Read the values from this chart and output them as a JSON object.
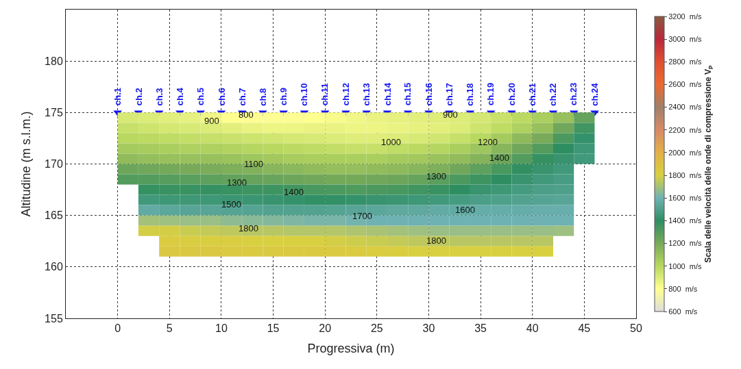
{
  "chart_data": {
    "type": "heatmap",
    "xlabel": "Progressiva (m)",
    "ylabel": "Altitudine (m s.l.m.)",
    "clabel": "Scala delle velocità delle onde di compressione V$_{P}$",
    "xlim": [
      -5,
      50
    ],
    "ylim": [
      155,
      185
    ],
    "xticks": [
      0,
      5,
      10,
      15,
      20,
      25,
      30,
      35,
      40,
      45,
      50
    ],
    "yticks": [
      155,
      160,
      165,
      170,
      175,
      180
    ],
    "grid": true,
    "x": [
      1,
      3,
      5,
      7,
      9,
      11,
      13,
      15,
      17,
      19,
      21,
      23,
      25,
      27,
      29,
      31,
      33,
      35,
      37,
      39,
      41,
      43,
      45
    ],
    "y": [
      174.5,
      173.5,
      172.5,
      171.5,
      170.5,
      169.5,
      168.5,
      167.5,
      166.5,
      165.5,
      164.5,
      163.5,
      162.5,
      161.5
    ],
    "cells": [
      [
        910,
        900,
        880,
        870,
        840,
        800,
        790,
        790,
        790,
        800,
        820,
        840,
        860,
        870,
        880,
        890,
        900,
        920,
        950,
        990,
        1040,
        1100,
        1250
      ],
      [
        960,
        940,
        920,
        910,
        900,
        880,
        860,
        850,
        850,
        860,
        860,
        850,
        850,
        860,
        870,
        880,
        900,
        940,
        980,
        1030,
        1100,
        1220,
        1350
      ],
      [
        1000,
        990,
        980,
        970,
        960,
        950,
        940,
        930,
        920,
        910,
        900,
        890,
        890,
        900,
        910,
        930,
        960,
        1000,
        1060,
        1130,
        1200,
        1320,
        1420
      ],
      [
        1060,
        1050,
        1040,
        1030,
        1030,
        1020,
        1010,
        1000,
        990,
        980,
        970,
        960,
        960,
        980,
        990,
        1010,
        1040,
        1080,
        1150,
        1220,
        1300,
        1400,
        1450
      ],
      [
        1120,
        1110,
        1100,
        1100,
        1100,
        1090,
        1080,
        1070,
        1050,
        1040,
        1040,
        1040,
        1040,
        1060,
        1070,
        1090,
        1120,
        1160,
        1230,
        1300,
        1380,
        1430,
        1460
      ],
      [
        1230,
        1220,
        1210,
        1200,
        1190,
        1180,
        1170,
        1150,
        1140,
        1120,
        1110,
        1110,
        1120,
        1130,
        1150,
        1180,
        1220,
        1270,
        1330,
        1390,
        1430,
        1460,
        null
      ],
      [
        1300,
        1300,
        1290,
        1280,
        1270,
        1260,
        1250,
        1240,
        1230,
        1220,
        1210,
        1210,
        1220,
        1230,
        1250,
        1280,
        1320,
        1360,
        1400,
        1430,
        1460,
        1480,
        null
      ],
      [
        null,
        1380,
        1370,
        1370,
        1380,
        1370,
        1360,
        1360,
        1350,
        1330,
        1320,
        1310,
        1320,
        1330,
        1350,
        1370,
        1400,
        1430,
        1450,
        1470,
        1490,
        1500,
        null
      ],
      [
        null,
        1460,
        1450,
        1450,
        1450,
        1440,
        1440,
        1430,
        1420,
        1410,
        1410,
        1420,
        1430,
        1440,
        1450,
        1460,
        1470,
        1490,
        1500,
        1510,
        1520,
        1530,
        null
      ],
      [
        null,
        1560,
        1540,
        1530,
        1530,
        1520,
        1520,
        1510,
        1510,
        1510,
        1520,
        1530,
        1540,
        1550,
        1550,
        1560,
        1560,
        1570,
        1570,
        1570,
        1580,
        1580,
        null
      ],
      [
        null,
        1700,
        1690,
        1680,
        1680,
        1660,
        1650,
        1640,
        1630,
        1620,
        1620,
        1610,
        1600,
        1600,
        1600,
        1600,
        1600,
        1600,
        1600,
        1600,
        1600,
        1600,
        null
      ],
      [
        null,
        1790,
        1790,
        1770,
        1760,
        1750,
        1740,
        1740,
        1730,
        1730,
        1730,
        1720,
        1710,
        1700,
        1690,
        1680,
        1680,
        1680,
        1680,
        1680,
        1680,
        1690,
        null
      ],
      [
        null,
        null,
        1830,
        1820,
        1810,
        1810,
        1800,
        1800,
        1800,
        1800,
        1790,
        1780,
        1770,
        1760,
        1750,
        1750,
        1740,
        1740,
        1740,
        1740,
        1740,
        null,
        null
      ],
      [
        null,
        null,
        1850,
        1850,
        1850,
        1840,
        1840,
        1840,
        1840,
        1840,
        1840,
        1830,
        1820,
        1810,
        1800,
        1800,
        1800,
        1800,
        1800,
        1800,
        1800,
        null,
        null
      ]
    ],
    "clim": [
      600,
      3200
    ],
    "cticks": [
      {
        "value": 600,
        "label": "600  m/s"
      },
      {
        "value": 800,
        "label": "800  m/s"
      },
      {
        "value": 1000,
        "label": "1000  m/s"
      },
      {
        "value": 1200,
        "label": "1200  m/s"
      },
      {
        "value": 1400,
        "label": "1400  m/s"
      },
      {
        "value": 1600,
        "label": "1600  m/s"
      },
      {
        "value": 1800,
        "label": "1800  m/s"
      },
      {
        "value": 2000,
        "label": "2000  m/s"
      },
      {
        "value": 2200,
        "label": "2200  m/s"
      },
      {
        "value": 2400,
        "label": "2400  m/s"
      },
      {
        "value": 2600,
        "label": "2600  m/s"
      },
      {
        "value": 2800,
        "label": "2800  m/s"
      },
      {
        "value": 3000,
        "label": "3000  m/s"
      },
      {
        "value": 3200,
        "label": "3200  m/s"
      }
    ],
    "colors": [
      "#dcdcdc",
      "#ffff90",
      "#b8d860",
      "#78aa5a",
      "#2e8e62",
      "#6fb2b4",
      "#d8d040",
      "#e2b048",
      "#d88a66",
      "#a08068",
      "#ea6a32",
      "#e05030",
      "#b8283a",
      "#8a5a40"
    ],
    "series": [
      {
        "type": "scatter",
        "color": "#1414f0",
        "marker": "triangle",
        "x": [
          0,
          2,
          4,
          6,
          8,
          10,
          12,
          14,
          16,
          18,
          20,
          22,
          24,
          26,
          28,
          30,
          32,
          34,
          36,
          38,
          40,
          42,
          44,
          46
        ],
        "values": [
          175,
          175,
          175,
          175,
          175,
          175,
          175,
          175,
          175,
          175,
          175,
          175,
          175,
          175,
          175,
          175,
          175,
          175,
          175,
          175,
          175,
          175,
          175,
          175
        ],
        "value_labels": [
          "ch.1",
          "ch.2",
          "ch.3",
          "ch.4",
          "ch.5",
          "ch.6",
          "ch.7",
          "ch.8",
          "ch.9",
          "ch.10",
          "ch.11",
          "ch.12",
          "ch.13",
          "ch.14",
          "ch.15",
          "ch.16",
          "ch.17",
          "ch.18",
          "ch.19",
          "ch.20",
          "ch.21",
          "ch.22",
          "ch.23",
          "ch.24"
        ]
      }
    ],
    "annotations": [
      "800",
      "900",
      "900",
      "1000",
      "1100",
      "1200",
      "1300",
      "1300",
      "1400",
      "1400",
      "1500",
      "1600",
      "1700",
      "1800",
      "1800"
    ]
  }
}
